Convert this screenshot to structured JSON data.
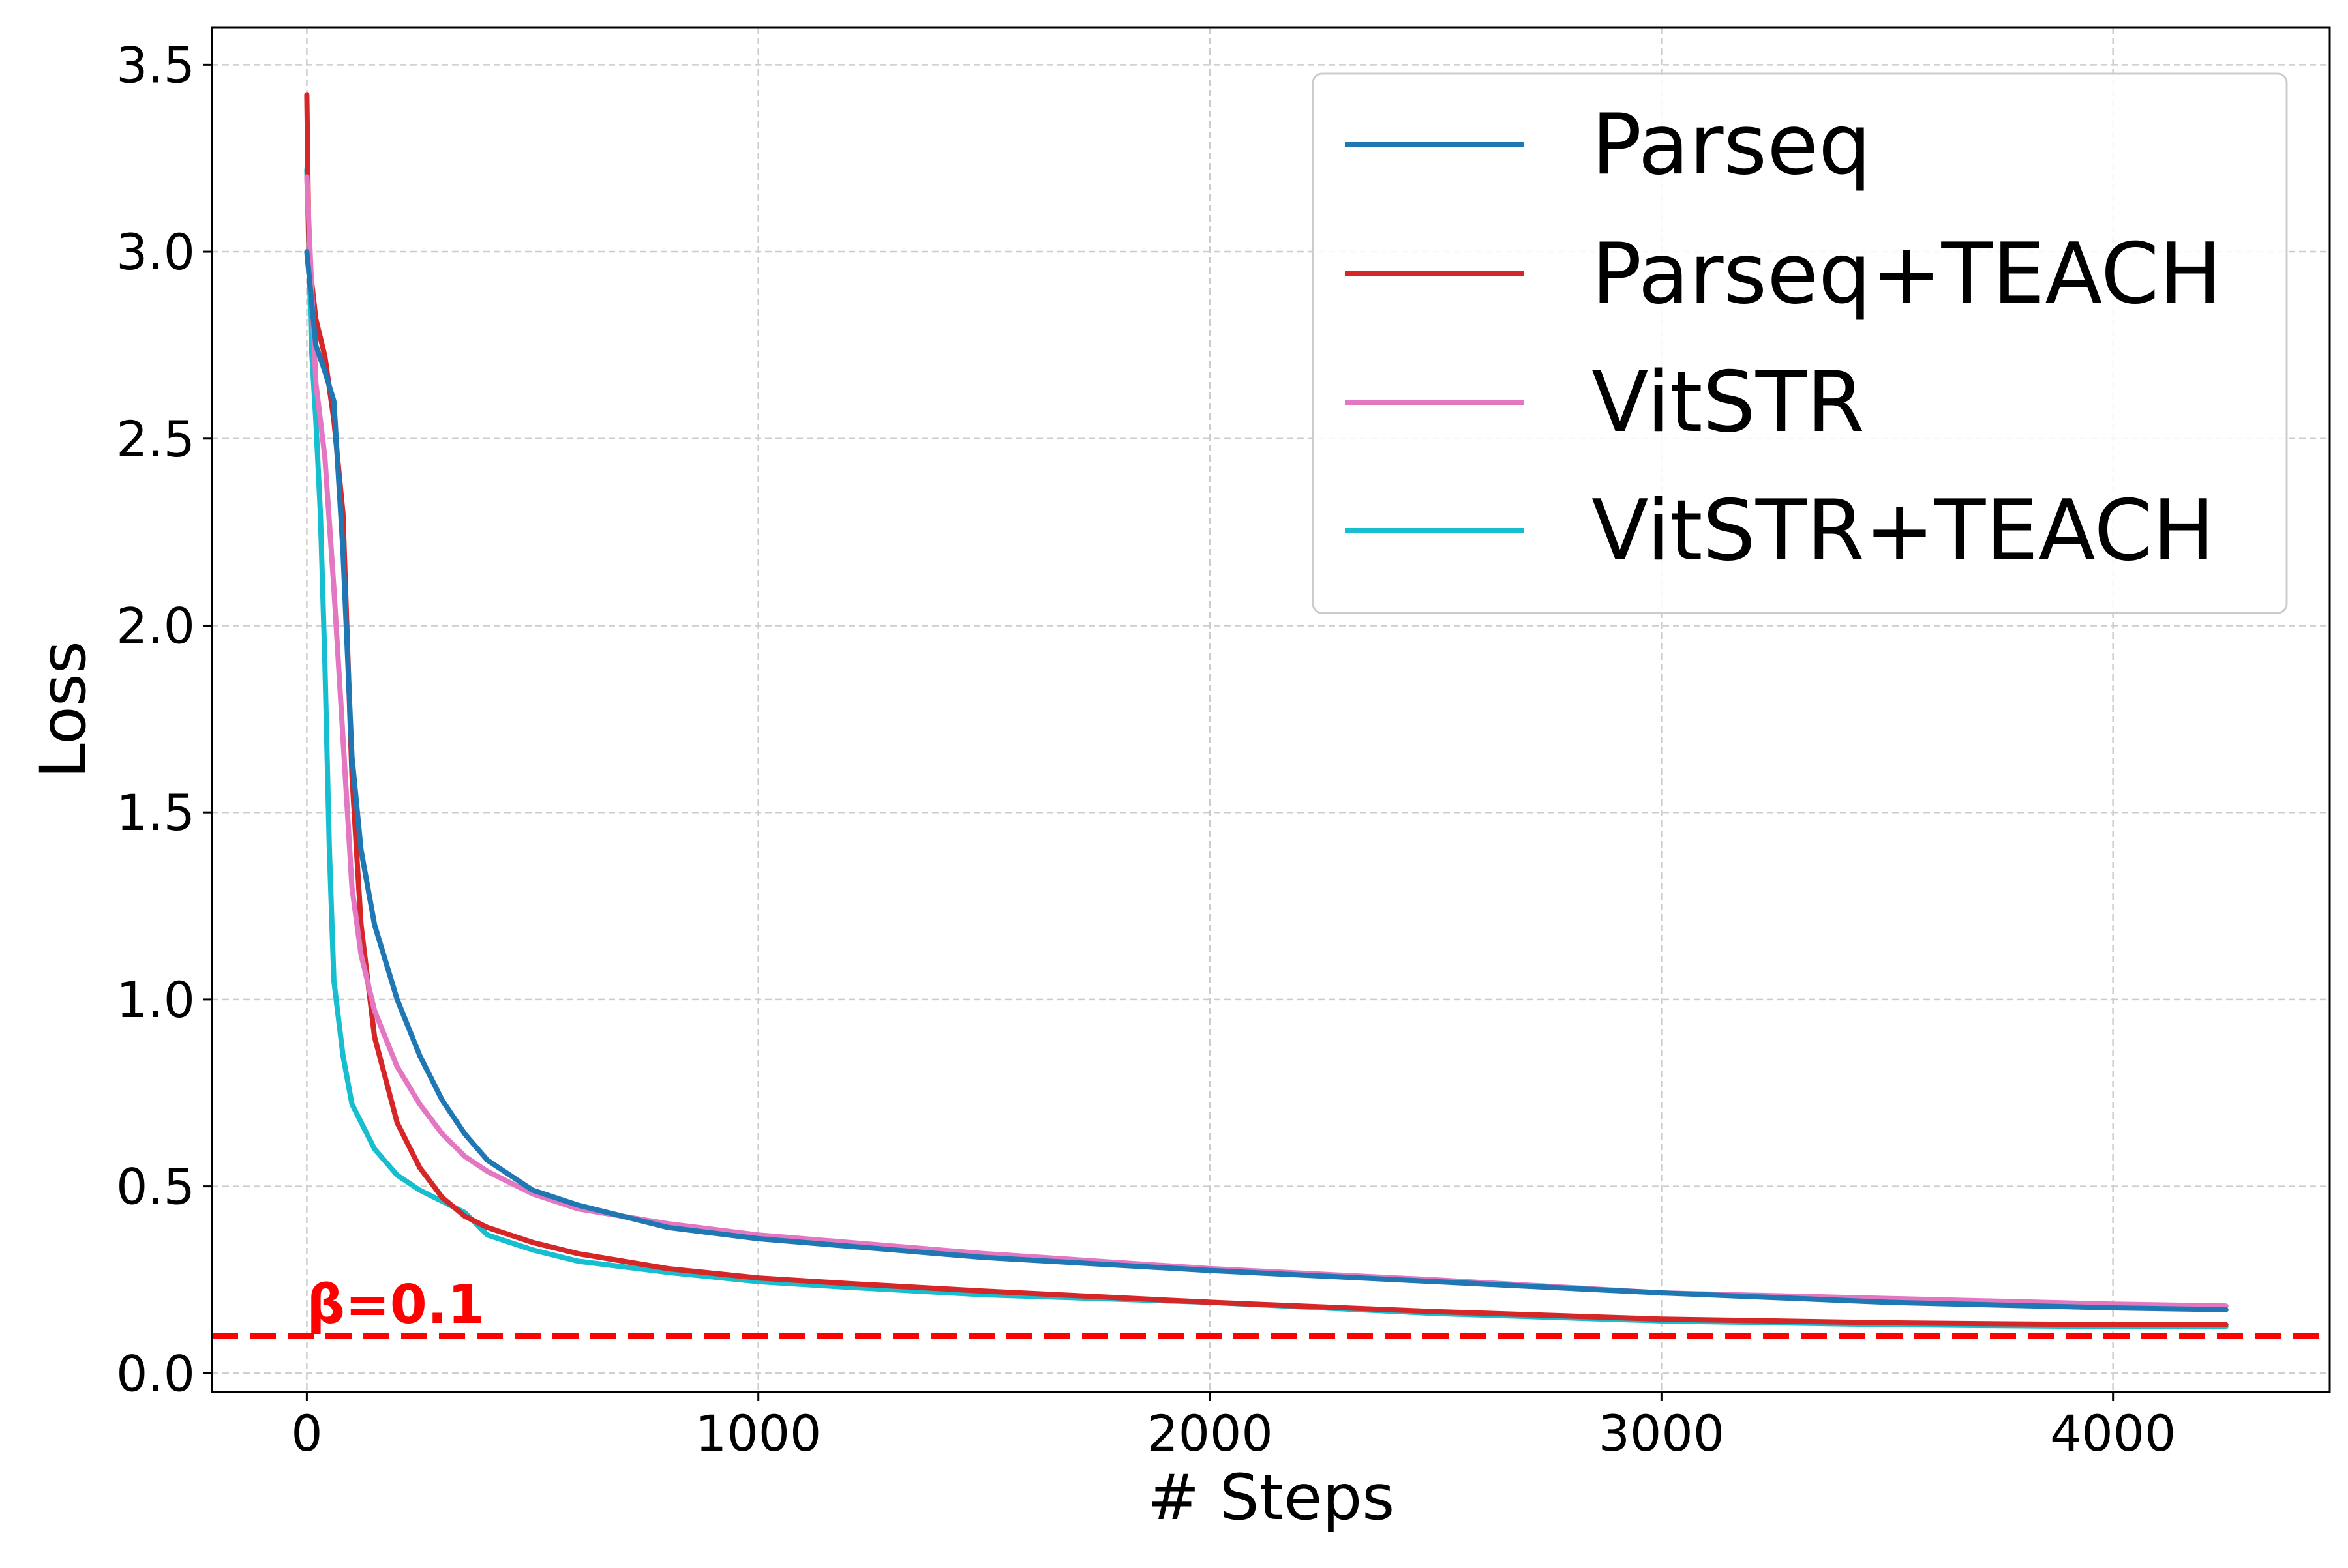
{
  "chart_data": {
    "type": "line",
    "title": "",
    "xlabel": "# Steps",
    "ylabel": "Loss",
    "xlim": [
      -210,
      4480
    ],
    "ylim": [
      -0.05,
      3.6
    ],
    "xticks": [
      0,
      1000,
      2000,
      3000,
      4000
    ],
    "xtick_labels": [
      "0",
      "1000",
      "2000",
      "3000",
      "4000"
    ],
    "yticks": [
      0.0,
      0.5,
      1.0,
      1.5,
      2.0,
      2.5,
      3.0,
      3.5
    ],
    "ytick_labels": [
      "0.0",
      "0.5",
      "1.0",
      "1.5",
      "2.0",
      "2.5",
      "3.0",
      "3.5"
    ],
    "grid": true,
    "legend_position": "top-right",
    "threshold": {
      "label": "β=0.1",
      "value": 0.1,
      "color": "#ff0000",
      "style": "dashed"
    },
    "series": [
      {
        "name": "Parseq",
        "color": "#1f77b4",
        "x": [
          0,
          20,
          40,
          60,
          80,
          100,
          120,
          150,
          200,
          250,
          300,
          350,
          400,
          500,
          600,
          800,
          1000,
          1200,
          1500,
          2000,
          2500,
          3000,
          3500,
          4000,
          4250
        ],
        "y": [
          3.0,
          2.75,
          2.68,
          2.6,
          2.2,
          1.65,
          1.4,
          1.2,
          1.0,
          0.85,
          0.73,
          0.64,
          0.57,
          0.49,
          0.45,
          0.39,
          0.36,
          0.34,
          0.31,
          0.275,
          0.245,
          0.215,
          0.19,
          0.175,
          0.17
        ]
      },
      {
        "name": "Parseq+TEACH",
        "color": "#d62728",
        "x": [
          0,
          5,
          20,
          40,
          60,
          80,
          100,
          120,
          150,
          200,
          250,
          300,
          350,
          400,
          500,
          600,
          800,
          1000,
          1200,
          1500,
          2000,
          2500,
          3000,
          3500,
          4000,
          4250
        ],
        "y": [
          3.42,
          2.98,
          2.82,
          2.72,
          2.55,
          2.3,
          1.6,
          1.2,
          0.9,
          0.67,
          0.55,
          0.47,
          0.42,
          0.39,
          0.35,
          0.32,
          0.28,
          0.255,
          0.24,
          0.22,
          0.19,
          0.165,
          0.145,
          0.135,
          0.13,
          0.13
        ]
      },
      {
        "name": "VitSTR",
        "color": "#e377c2",
        "x": [
          0,
          20,
          40,
          60,
          80,
          100,
          120,
          150,
          200,
          250,
          300,
          350,
          400,
          500,
          600,
          800,
          1000,
          1200,
          1500,
          2000,
          2500,
          3000,
          3500,
          4000,
          4250
        ],
        "y": [
          3.2,
          2.65,
          2.45,
          2.1,
          1.7,
          1.3,
          1.12,
          0.97,
          0.82,
          0.72,
          0.64,
          0.58,
          0.54,
          0.48,
          0.44,
          0.4,
          0.37,
          0.35,
          0.32,
          0.28,
          0.25,
          0.215,
          0.2,
          0.185,
          0.18
        ]
      },
      {
        "name": "VitSTR+TEACH",
        "color": "#17becf",
        "x": [
          0,
          10,
          20,
          30,
          40,
          50,
          60,
          80,
          100,
          150,
          200,
          250,
          300,
          350,
          400,
          500,
          600,
          800,
          1000,
          1200,
          1500,
          2000,
          2500,
          3000,
          3500,
          4000,
          4250
        ],
        "y": [
          3.22,
          2.75,
          2.55,
          2.3,
          1.9,
          1.4,
          1.05,
          0.85,
          0.72,
          0.6,
          0.53,
          0.49,
          0.46,
          0.43,
          0.37,
          0.33,
          0.3,
          0.27,
          0.245,
          0.23,
          0.21,
          0.19,
          0.16,
          0.14,
          0.13,
          0.125,
          0.125
        ]
      }
    ]
  }
}
